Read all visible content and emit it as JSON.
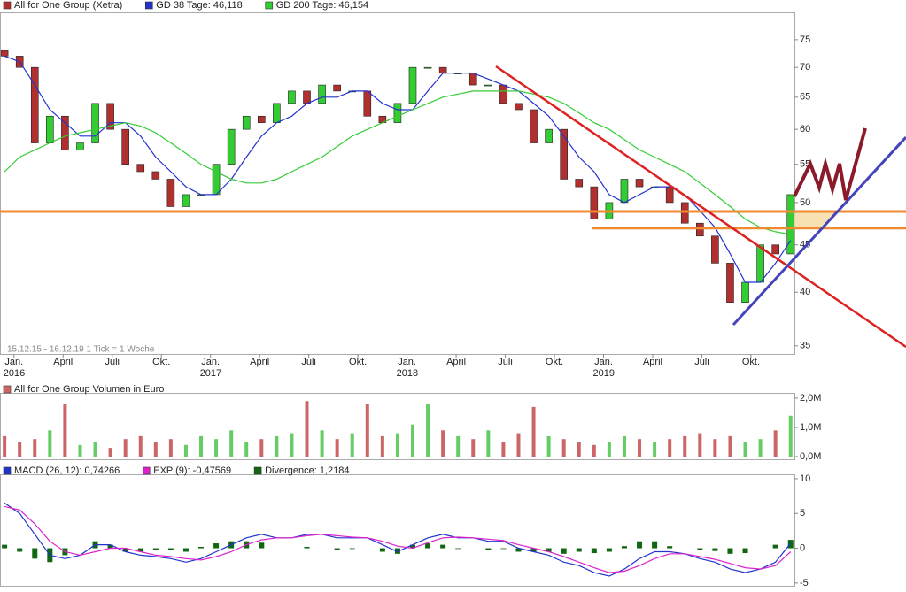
{
  "chart_data": [
    {
      "type": "candlestick",
      "log_scale": true,
      "note": "15.12.15 - 16.12.19   1 Tick = 1 Woche",
      "x": [
        0,
        4,
        8,
        12,
        16,
        20,
        24,
        28,
        32,
        36,
        40,
        44,
        48,
        52,
        56,
        60,
        64,
        68,
        72,
        76,
        80,
        84,
        88,
        92,
        96,
        100,
        104,
        108,
        112,
        116,
        120,
        124,
        128,
        132,
        136,
        140,
        144,
        148,
        152,
        156,
        160,
        164,
        168,
        172,
        176,
        180,
        184,
        188,
        192,
        196,
        200,
        204,
        208
      ],
      "xlim": [
        -1.2,
        209
      ],
      "ylim": [
        34.3,
        80.1
      ],
      "yticks": [
        35,
        40,
        45,
        50,
        55,
        60,
        65,
        70,
        75
      ],
      "xticks": [
        {
          "value": 2.5,
          "label": "Jan."
        },
        {
          "value": 15.5,
          "label": "April"
        },
        {
          "value": 28.5,
          "label": "Juli"
        },
        {
          "value": 41.5,
          "label": "Okt."
        },
        {
          "value": 54.5,
          "label": "Jan."
        },
        {
          "value": 67.5,
          "label": "April"
        },
        {
          "value": 80.5,
          "label": "Juli"
        },
        {
          "value": 93.5,
          "label": "Okt."
        },
        {
          "value": 106.5,
          "label": "Jan."
        },
        {
          "value": 119.5,
          "label": "April"
        },
        {
          "value": 132.5,
          "label": "Juli"
        },
        {
          "value": 145.5,
          "label": "Okt."
        },
        {
          "value": 158.5,
          "label": "Jan."
        },
        {
          "value": 171.5,
          "label": "April"
        },
        {
          "value": 184.5,
          "label": "Juli"
        },
        {
          "value": 197.5,
          "label": "Okt."
        }
      ],
      "x_years": [
        {
          "value": 2.5,
          "label": "2016"
        },
        {
          "value": 54.5,
          "label": "2017"
        },
        {
          "value": 106.5,
          "label": "2018"
        },
        {
          "value": 158.5,
          "label": "2019"
        }
      ],
      "series": [
        {
          "name": "All for One Group (Xetra)",
          "color": "#b03030",
          "up_color": "#33cc33",
          "down_color": "#b03030",
          "open": [
            73,
            72,
            70,
            58,
            62,
            57,
            58,
            64,
            60,
            55,
            54,
            53,
            49.5,
            51,
            51,
            55,
            60,
            62,
            61,
            64,
            66,
            64,
            67,
            66,
            66,
            62,
            61,
            64,
            70,
            70,
            69,
            69,
            67,
            67,
            64,
            63,
            58,
            60,
            53,
            52,
            48,
            50,
            53,
            52,
            52,
            50,
            47.5,
            46,
            43,
            39,
            41,
            45,
            44
          ],
          "values": [
            72,
            70,
            58,
            62,
            57,
            58,
            64,
            60,
            55,
            54,
            53,
            49.5,
            51,
            51,
            55,
            60,
            62,
            61,
            64,
            66,
            64,
            67,
            66,
            66,
            62,
            61,
            64,
            70,
            70,
            69,
            69,
            67,
            67,
            64,
            63,
            58,
            60,
            53,
            52,
            48,
            50,
            53,
            52,
            52,
            50,
            47.5,
            46,
            43,
            39,
            41,
            45,
            44,
            51
          ]
        },
        {
          "name": "GD 38 Tage: 46,118",
          "color": "#2233cc",
          "values": [
            72,
            71,
            67,
            63,
            61,
            59,
            59,
            61,
            61,
            59,
            56,
            54,
            52,
            51,
            51,
            53,
            56,
            59,
            61,
            62,
            64,
            65,
            65,
            66,
            66,
            64,
            63,
            63,
            66,
            69,
            69,
            69,
            68,
            67,
            66,
            64,
            62,
            59,
            56,
            54,
            51,
            50,
            51,
            52,
            52,
            51,
            49,
            47,
            44,
            41,
            41,
            43,
            45.5
          ]
        },
        {
          "name": "GD 200 Tage: 46,154",
          "color": "#33cc33",
          "values": [
            54,
            56,
            57,
            58,
            59,
            59.5,
            60,
            60.5,
            61,
            60.5,
            59.5,
            58,
            56.5,
            55,
            54,
            53,
            52.5,
            52.5,
            53,
            54,
            55,
            56,
            57.5,
            59,
            60,
            61,
            62,
            63,
            64,
            65,
            65.5,
            66,
            66,
            66,
            66,
            65.5,
            65,
            64,
            62.5,
            61,
            60,
            58.5,
            57,
            56,
            55,
            54,
            52.5,
            51,
            49.5,
            48,
            47,
            46.5,
            46.2
          ]
        }
      ]
    },
    {
      "type": "bar",
      "title": "All for One Group Volumen in Euro",
      "color": "#cc6666",
      "up_color": "#66cc66",
      "down_color": "#cc6666",
      "x": [
        0,
        4,
        8,
        12,
        16,
        20,
        24,
        28,
        32,
        36,
        40,
        44,
        48,
        52,
        56,
        60,
        64,
        68,
        72,
        76,
        80,
        84,
        88,
        92,
        96,
        100,
        104,
        108,
        112,
        116,
        120,
        124,
        128,
        132,
        136,
        140,
        144,
        148,
        152,
        156,
        160,
        164,
        168,
        172,
        176,
        180,
        184,
        188,
        192,
        196,
        200,
        204,
        208
      ],
      "xlim": [
        -1.2,
        209
      ],
      "ylim": [
        0,
        2150000
      ],
      "yticks": [
        {
          "value": 0,
          "label": "0,0M"
        },
        {
          "value": 1000000,
          "label": "1,0M"
        },
        {
          "value": 2000000,
          "label": "2,0M"
        }
      ],
      "values": [
        700000,
        500000,
        600000,
        900000,
        1800000,
        400000,
        500000,
        300000,
        600000,
        700000,
        500000,
        600000,
        400000,
        700000,
        600000,
        900000,
        500000,
        600000,
        700000,
        800000,
        1900000,
        900000,
        600000,
        800000,
        1800000,
        700000,
        800000,
        1100000,
        1800000,
        900000,
        700000,
        600000,
        900000,
        500000,
        800000,
        1700000,
        700000,
        600000,
        500000,
        400000,
        500000,
        700000,
        600000,
        500000,
        600000,
        700000,
        800000,
        600000,
        700000,
        500000,
        600000,
        900000,
        1400000
      ]
    },
    {
      "type": "line",
      "x": [
        0,
        4,
        8,
        12,
        16,
        20,
        24,
        28,
        32,
        36,
        40,
        44,
        48,
        52,
        56,
        60,
        64,
        68,
        72,
        76,
        80,
        84,
        88,
        92,
        96,
        100,
        104,
        108,
        112,
        116,
        120,
        124,
        128,
        132,
        136,
        140,
        144,
        148,
        152,
        156,
        160,
        164,
        168,
        172,
        176,
        180,
        184,
        188,
        192,
        196,
        200,
        204,
        208
      ],
      "xlim": [
        -1.2,
        209
      ],
      "ylim": [
        -5.4,
        10.5
      ],
      "yticks": [
        -5,
        0,
        5,
        10
      ],
      "series": [
        {
          "name": "MACD (26, 12): 0,74266",
          "color": "#2233cc",
          "style": "line",
          "values": [
            6.5,
            5,
            2,
            -1,
            -1.5,
            -1,
            0.5,
            0.5,
            -0.5,
            -1,
            -1.2,
            -1.5,
            -2,
            -1.5,
            -0.5,
            0.5,
            1.5,
            2,
            1.5,
            1.5,
            2,
            2,
            1.5,
            1.5,
            1.5,
            0.5,
            -0.5,
            0.5,
            1.5,
            2,
            1.5,
            1.5,
            1,
            1,
            0,
            -0.5,
            -1,
            -2,
            -2.5,
            -3.5,
            -4,
            -3,
            -1.5,
            -0.5,
            -0.5,
            -0.8,
            -1.5,
            -2,
            -3,
            -3.5,
            -3,
            -2,
            0.7
          ]
        },
        {
          "name": "EXP (9): -0,47569",
          "color": "#dd22cc",
          "style": "line",
          "values": [
            6,
            5.5,
            3.5,
            1,
            -0.5,
            -1,
            -0.5,
            0,
            0,
            -0.5,
            -1,
            -1.2,
            -1.5,
            -1.7,
            -1.2,
            -0.5,
            0.5,
            1.2,
            1.5,
            1.5,
            1.8,
            2,
            1.8,
            1.6,
            1.5,
            1,
            0.3,
            0,
            0.8,
            1.5,
            1.6,
            1.5,
            1.3,
            1.1,
            0.5,
            0,
            -0.5,
            -1.2,
            -2,
            -2.8,
            -3.5,
            -3.3,
            -2.5,
            -1.5,
            -0.8,
            -0.8,
            -1.2,
            -1.6,
            -2.2,
            -2.8,
            -3,
            -2.5,
            -0.5
          ]
        },
        {
          "name": "Divergence: 1,2184",
          "color": "#116611",
          "style": "bar",
          "values": [
            0.5,
            -0.5,
            -1.5,
            -2,
            -1,
            0,
            1,
            0.5,
            -0.5,
            -0.5,
            -0.2,
            -0.3,
            -0.5,
            0.2,
            0.7,
            1,
            1,
            0.8,
            0,
            0,
            0.2,
            0,
            -0.3,
            -0.1,
            0,
            -0.5,
            -0.8,
            0.5,
            0.7,
            0.5,
            -0.1,
            0,
            -0.3,
            -0.1,
            -0.5,
            -0.5,
            -0.5,
            -0.8,
            -0.5,
            -0.7,
            -0.5,
            0.3,
            1,
            1,
            0.3,
            0,
            -0.3,
            -0.4,
            -0.8,
            -0.7,
            0,
            0.5,
            1.2
          ]
        }
      ]
    }
  ]
}
